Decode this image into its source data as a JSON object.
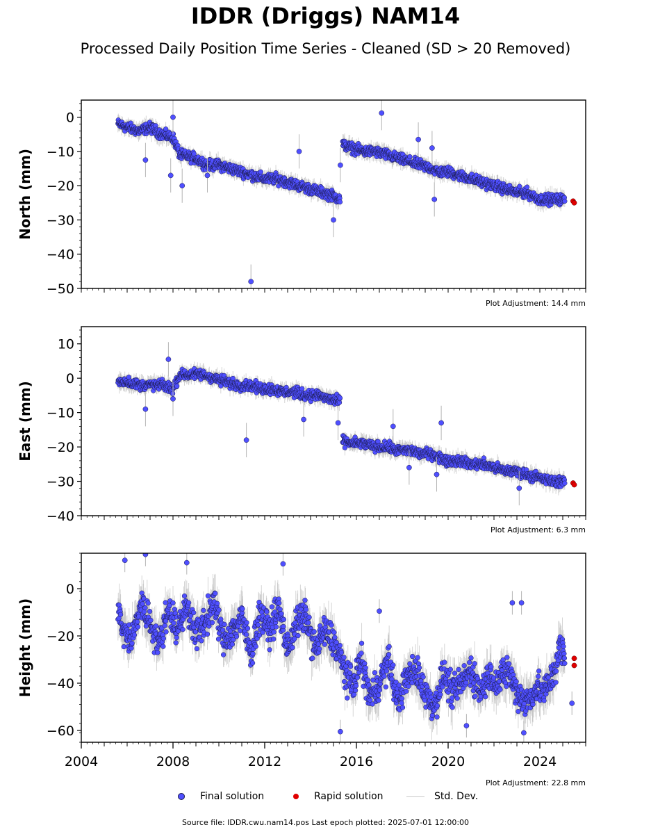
{
  "header": {
    "title": "IDDR (Driggs) NAM14",
    "subtitle": "Processed Daily Position Time Series - Cleaned (SD > 20 Removed)"
  },
  "legend": {
    "final_label": "Final solution",
    "rapid_label": "Rapid solution",
    "std_label": "Std. Dev."
  },
  "colors": {
    "final": "#4f4fff",
    "final_edge": "#1a1a4a",
    "rapid": "#e00000",
    "std": "#b4b4b4"
  },
  "footer": {
    "text": "Source file: IDDR.cwu.nam14.pos  Last epoch plotted: 2025-07-01 12:00:00"
  },
  "chart_data": [
    {
      "type": "scatter",
      "ylabel": "North (mm)",
      "ylim": [
        -50,
        5
      ],
      "yticks": [
        0,
        -10,
        -20,
        -30,
        -40,
        -50
      ],
      "yticklabels": [
        "0",
        "−10",
        "−20",
        "−30",
        "−40",
        "−50"
      ],
      "xlim": [
        2004.0,
        2026.0
      ],
      "xticks": [],
      "xticklabels": [],
      "adjustment": "Plot Adjustment: 14.4 mm",
      "series": [
        {
          "kind": "final",
          "x": [
            2005.6,
            2006.0,
            2006.5,
            2007.0,
            2007.5,
            2008.0,
            2008.3,
            2009.0,
            2009.5,
            2010.0,
            2010.5,
            2011.0,
            2011.5,
            2012.0,
            2012.5,
            2013.0,
            2013.5,
            2014.0,
            2014.5,
            2015.0,
            2015.3,
            2015.4,
            2015.8,
            2016.3,
            2016.8,
            2017.3,
            2017.8,
            2018.3,
            2018.8,
            2019.3,
            2019.6,
            2020.0,
            2020.5,
            2021.0,
            2021.5,
            2022.0,
            2022.5,
            2023.0,
            2023.4,
            2024.0,
            2024.5,
            2024.9,
            2025.1
          ],
          "y": [
            -2,
            -3,
            -4,
            -3,
            -5,
            -6,
            -11,
            -12,
            -14,
            -14,
            -15,
            -16,
            -17,
            -18,
            -18,
            -19,
            -20,
            -21,
            -22,
            -23,
            -24,
            -8,
            -9,
            -10,
            -10,
            -11,
            -12,
            -13,
            -14,
            -15,
            -16,
            -16,
            -17,
            -18,
            -19,
            -20,
            -21,
            -22,
            -22,
            -24,
            -24,
            -24,
            -24
          ]
        },
        {
          "kind": "outliers",
          "x": [
            2006.8,
            2007.9,
            2008.0,
            2008.4,
            2009.5,
            2011.4,
            2013.5,
            2015.0,
            2015.3,
            2017.1,
            2018.7,
            2019.3,
            2019.4
          ],
          "y": [
            -12.5,
            -17,
            0,
            -20,
            -17,
            -48,
            -10,
            -30,
            -14,
            1.2,
            -6.5,
            -9,
            -24
          ]
        },
        {
          "kind": "rapid",
          "x": [
            2025.45,
            2025.5
          ],
          "y": [
            -24.5,
            -25
          ]
        }
      ]
    },
    {
      "type": "scatter",
      "ylabel": "East (mm)",
      "ylim": [
        -40,
        15
      ],
      "yticks": [
        10,
        0,
        -10,
        -20,
        -30,
        -40
      ],
      "yticklabels": [
        "10",
        "0",
        "−10",
        "−20",
        "−30",
        "−40"
      ],
      "xlim": [
        2004.0,
        2026.0
      ],
      "xticks": [],
      "xticklabels": [],
      "adjustment": "Plot Adjustment: 6.3 mm",
      "series": [
        {
          "kind": "final",
          "x": [
            2005.6,
            2006.0,
            2006.5,
            2007.0,
            2007.5,
            2008.0,
            2008.3,
            2008.8,
            2009.3,
            2009.8,
            2010.3,
            2010.8,
            2011.3,
            2011.8,
            2012.3,
            2012.8,
            2013.3,
            2013.8,
            2014.3,
            2014.8,
            2015.3,
            2015.4,
            2015.8,
            2016.3,
            2016.8,
            2017.3,
            2017.8,
            2018.3,
            2018.8,
            2019.3,
            2019.6,
            2020.0,
            2020.5,
            2021.0,
            2021.5,
            2022.0,
            2022.5,
            2023.0,
            2023.4,
            2024.0,
            2024.5,
            2024.9,
            2025.1
          ],
          "y": [
            -1,
            -1,
            -2,
            -2,
            -2,
            -3,
            1,
            1,
            1,
            0,
            -1,
            -2,
            -2,
            -3,
            -3,
            -4,
            -4,
            -5,
            -5,
            -6,
            -7,
            -18,
            -19,
            -19,
            -20,
            -20,
            -21,
            -21,
            -22,
            -22,
            -23,
            -24,
            -24,
            -25,
            -25,
            -26,
            -27,
            -27,
            -28,
            -29,
            -30,
            -30,
            -30
          ]
        },
        {
          "kind": "outliers",
          "x": [
            2006.8,
            2007.8,
            2008.0,
            2011.2,
            2013.7,
            2015.2,
            2017.6,
            2018.3,
            2019.5,
            2019.7,
            2023.1
          ],
          "y": [
            -9,
            5.5,
            -6,
            -18,
            -12,
            -13,
            -14,
            -26,
            -28,
            -13,
            -32
          ]
        },
        {
          "kind": "rapid",
          "x": [
            2025.45,
            2025.5
          ],
          "y": [
            -30.5,
            -31
          ]
        }
      ]
    },
    {
      "type": "scatter",
      "ylabel": "Height (mm)",
      "ylim": [
        -65,
        15
      ],
      "yticks": [
        0,
        -20,
        -40,
        -60
      ],
      "yticklabels": [
        "0",
        "−20",
        "−40",
        "−60"
      ],
      "xlim": [
        2004.0,
        2026.0
      ],
      "xticks": [
        2004,
        2008,
        2012,
        2016,
        2020,
        2024
      ],
      "xticklabels": [
        "2004",
        "2008",
        "2012",
        "2016",
        "2020",
        "2024"
      ],
      "adjustment": "Plot Adjustment: 22.8 mm",
      "series": [
        {
          "kind": "final",
          "x": [
            2005.6,
            2005.8,
            2006.2,
            2006.6,
            2007.0,
            2007.4,
            2007.8,
            2008.2,
            2008.6,
            2009.0,
            2009.4,
            2009.8,
            2010.2,
            2010.6,
            2011.0,
            2011.4,
            2011.8,
            2012.2,
            2012.6,
            2013.0,
            2013.4,
            2013.8,
            2014.2,
            2014.6,
            2015.0,
            2015.4,
            2015.8,
            2016.2,
            2016.6,
            2017.0,
            2017.4,
            2017.8,
            2018.2,
            2018.6,
            2019.0,
            2019.4,
            2019.8,
            2020.2,
            2020.6,
            2021.0,
            2021.4,
            2021.8,
            2022.2,
            2022.6,
            2023.0,
            2023.4,
            2023.9,
            2024.2,
            2024.6,
            2024.9,
            2025.1
          ],
          "y": [
            -8,
            -18,
            -22,
            -6,
            -14,
            -24,
            -8,
            -18,
            -6,
            -20,
            -14,
            -6,
            -22,
            -18,
            -12,
            -28,
            -10,
            -18,
            -8,
            -26,
            -14,
            -12,
            -26,
            -18,
            -22,
            -32,
            -42,
            -30,
            -46,
            -40,
            -30,
            -48,
            -38,
            -34,
            -44,
            -50,
            -36,
            -44,
            -40,
            -34,
            -44,
            -36,
            -40,
            -34,
            -44,
            -48,
            -42,
            -44,
            -36,
            -24,
            -30
          ]
        },
        {
          "kind": "outliers",
          "x": [
            2005.9,
            2006.8,
            2008.6,
            2012.8,
            2015.3,
            2017.0,
            2020.8,
            2022.8,
            2023.3,
            2023.2,
            2025.4
          ],
          "y": [
            12,
            14.5,
            11,
            10.5,
            -60.5,
            -9.5,
            -58,
            -6,
            -61,
            -6,
            -48.5
          ]
        },
        {
          "kind": "rapid",
          "x": [
            2025.5,
            2025.5
          ],
          "y": [
            -29.5,
            -32.5
          ]
        }
      ]
    }
  ]
}
